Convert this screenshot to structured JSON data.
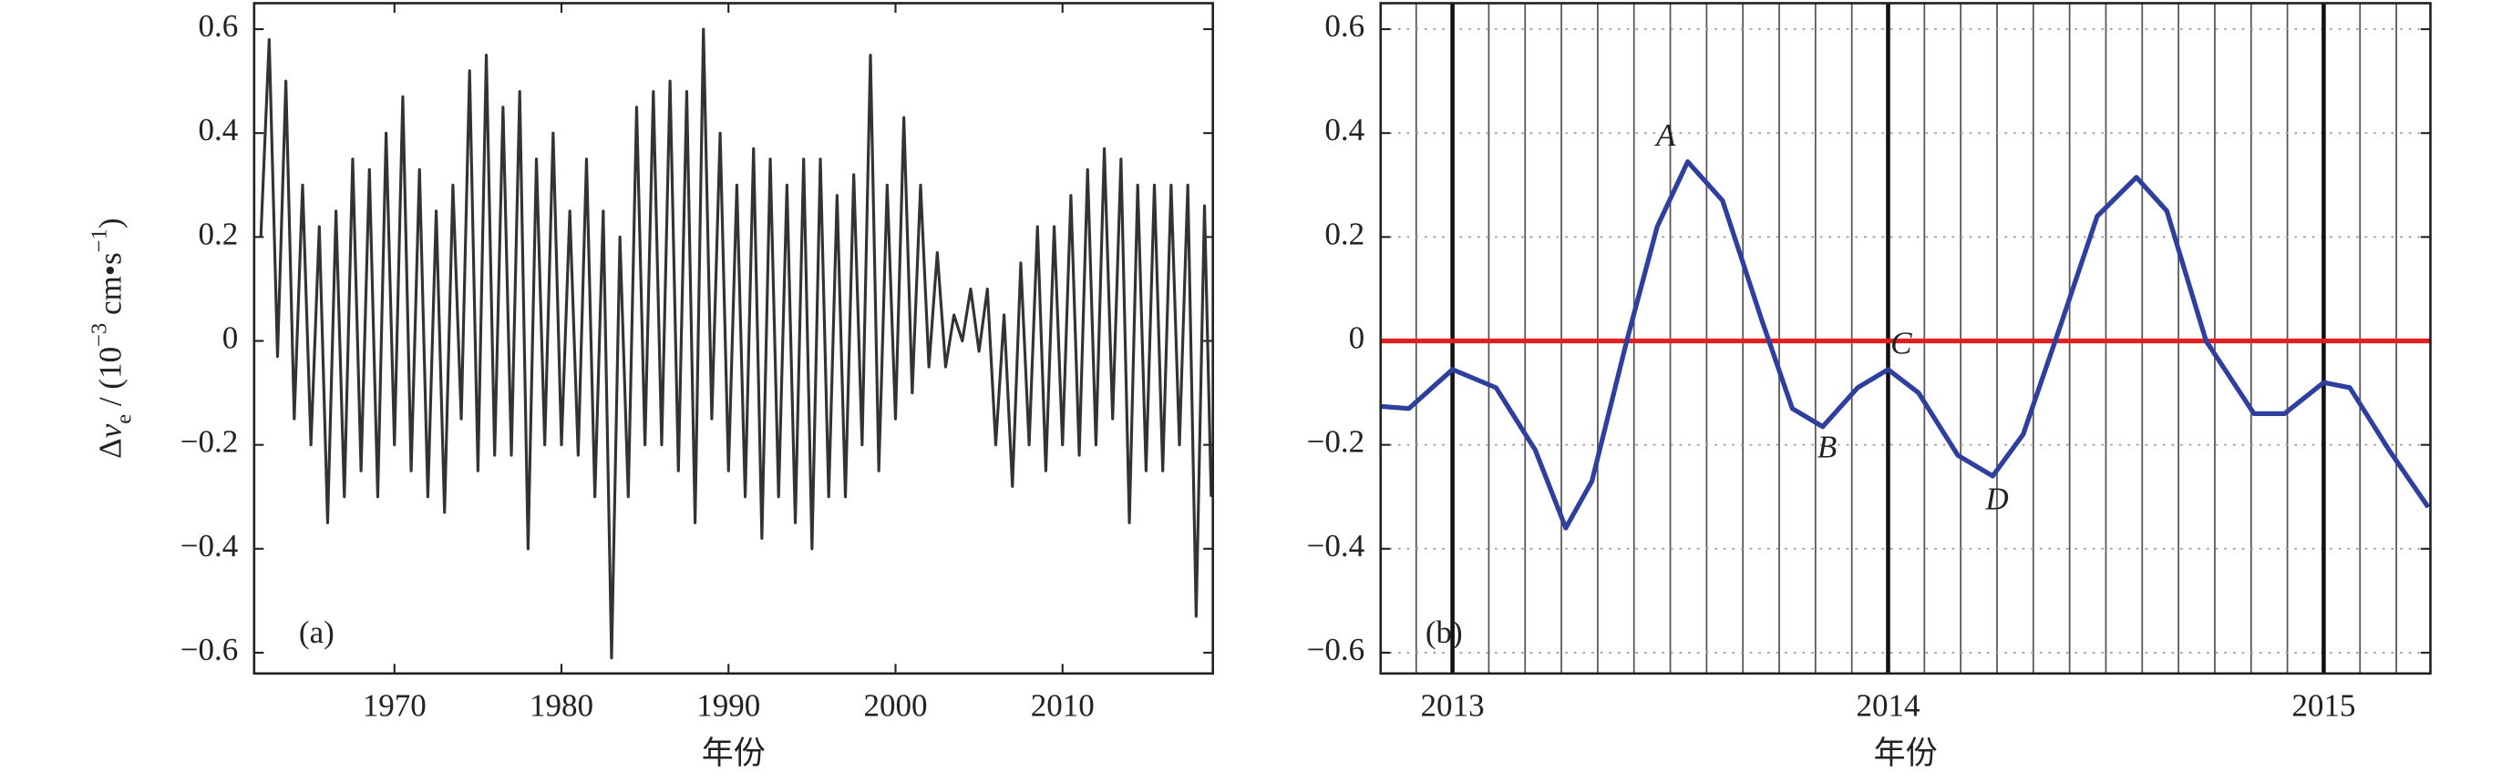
{
  "chart_data": [
    {
      "type": "line",
      "panel_label": "(a)",
      "xlabel": "年份",
      "ylabel_parts": [
        {
          "text": "Δ"
        },
        {
          "text": "v",
          "style": "italic"
        },
        {
          "text": "e",
          "shift": "sub"
        },
        {
          "text": " / (10"
        },
        {
          "text": "−3",
          "shift": "super"
        },
        {
          "text": " cm•s"
        },
        {
          "text": "−1",
          "shift": "super"
        },
        {
          "text": ")"
        }
      ],
      "xlim": [
        1961.6,
        2019.0
      ],
      "xticks": [
        1970,
        1980,
        1990,
        2000,
        2010
      ],
      "ylim": [
        -0.64,
        0.65
      ],
      "yticks": [
        0.6,
        0.4,
        0.2,
        0,
        {
          "value": -0.2,
          "label": "−0.2"
        },
        {
          "value": -0.4,
          "label": "−0.4"
        },
        {
          "value": -0.6,
          "label": "−0.6"
        }
      ],
      "grid": false,
      "series": [
        {
          "color": "#333333",
          "x": [
            1962.0,
            1962.5,
            1963.0,
            1963.5,
            1964.0,
            1964.5,
            1965.0,
            1965.5,
            1966.0,
            1966.5,
            1967.0,
            1967.5,
            1968.0,
            1968.5,
            1969.0,
            1969.5,
            1970.0,
            1970.5,
            1971.0,
            1971.5,
            1972.0,
            1972.5,
            1973.0,
            1973.5,
            1974.0,
            1974.5,
            1975.0,
            1975.5,
            1976.0,
            1976.5,
            1977.0,
            1977.5,
            1978.0,
            1978.5,
            1979.0,
            1979.5,
            1980.0,
            1980.5,
            1981.0,
            1981.5,
            1982.0,
            1982.5,
            1983.0,
            1983.5,
            1984.0,
            1984.5,
            1985.0,
            1985.5,
            1986.0,
            1986.5,
            1987.0,
            1987.5,
            1988.0,
            1988.5,
            1989.0,
            1989.5,
            1990.0,
            1990.5,
            1991.0,
            1991.5,
            1992.0,
            1992.5,
            1993.0,
            1993.5,
            1994.0,
            1994.5,
            1995.0,
            1995.5,
            1996.0,
            1996.5,
            1997.0,
            1997.5,
            1998.0,
            1998.5,
            1999.0,
            1999.5,
            2000.0,
            2000.5,
            2001.0,
            2001.5,
            2002.0,
            2002.5,
            2003.0,
            2003.5,
            2004.0,
            2004.5,
            2005.0,
            2005.5,
            2006.0,
            2006.5,
            2007.0,
            2007.5,
            2008.0,
            2008.5,
            2009.0,
            2009.5,
            2010.0,
            2010.5,
            2011.0,
            2011.5,
            2012.0,
            2012.5,
            2013.0,
            2013.5,
            2014.0,
            2014.5,
            2015.0,
            2015.5,
            2016.0,
            2016.5,
            2017.0,
            2017.5,
            2018.0,
            2018.5,
            2018.9
          ],
          "values": [
            0.2,
            0.58,
            -0.03,
            0.5,
            -0.15,
            0.3,
            -0.2,
            0.22,
            -0.35,
            0.25,
            -0.3,
            0.35,
            -0.25,
            0.33,
            -0.3,
            0.4,
            -0.2,
            0.47,
            -0.25,
            0.33,
            -0.3,
            0.25,
            -0.33,
            0.3,
            -0.15,
            0.52,
            -0.25,
            0.55,
            -0.22,
            0.45,
            -0.22,
            0.48,
            -0.4,
            0.35,
            -0.2,
            0.4,
            -0.2,
            0.25,
            -0.22,
            0.35,
            -0.3,
            0.25,
            -0.61,
            0.2,
            -0.3,
            0.45,
            -0.2,
            0.48,
            -0.2,
            0.5,
            -0.25,
            0.48,
            -0.35,
            0.6,
            -0.15,
            0.4,
            -0.25,
            0.3,
            -0.3,
            0.37,
            -0.38,
            0.35,
            -0.3,
            0.3,
            -0.35,
            0.35,
            -0.4,
            0.35,
            -0.3,
            0.28,
            -0.3,
            0.32,
            -0.2,
            0.55,
            -0.25,
            0.3,
            -0.15,
            0.43,
            -0.1,
            0.3,
            -0.05,
            0.17,
            -0.05,
            0.05,
            0.0,
            0.1,
            -0.02,
            0.1,
            -0.2,
            0.05,
            -0.28,
            0.15,
            -0.2,
            0.22,
            -0.25,
            0.22,
            -0.2,
            0.28,
            -0.22,
            0.33,
            -0.2,
            0.37,
            -0.15,
            0.35,
            -0.35,
            0.3,
            -0.25,
            0.3,
            -0.25,
            0.3,
            -0.2,
            0.3,
            -0.53,
            0.26,
            -0.3
          ]
        }
      ]
    },
    {
      "type": "line",
      "panel_label": "(b)",
      "xlabel": "年份",
      "xlim": [
        2012.835,
        2015.245
      ],
      "xticks": [
        2013,
        2014,
        2015
      ],
      "minor_xticks_per_year": 12,
      "ylim": [
        -0.64,
        0.65
      ],
      "yticks": [
        0.6,
        0.4,
        0.2,
        0,
        {
          "value": -0.2,
          "label": "−0.2"
        },
        {
          "value": -0.4,
          "label": "−0.4"
        },
        {
          "value": -0.6,
          "label": "−0.6"
        }
      ],
      "grid": true,
      "hline": {
        "value": 0,
        "color": "#e02020"
      },
      "series": [
        {
          "color": "#2e3f9e",
          "x": [
            2012.835,
            2012.9,
            2013.0,
            2013.1,
            2013.19,
            2013.26,
            2013.32,
            2013.4,
            2013.47,
            2013.54,
            2013.62,
            2013.71,
            2013.78,
            2013.85,
            2013.93,
            2014.0,
            2014.07,
            2014.16,
            2014.24,
            2014.31,
            2014.4,
            2014.48,
            2014.57,
            2014.64,
            2014.73,
            2014.84,
            2014.91,
            2015.0,
            2015.06,
            2015.15,
            2015.24
          ],
          "values": [
            -0.126,
            -0.13,
            -0.055,
            -0.09,
            -0.21,
            -0.36,
            -0.27,
            0.0,
            0.22,
            0.345,
            0.27,
            0.04,
            -0.13,
            -0.165,
            -0.09,
            -0.055,
            -0.1,
            -0.22,
            -0.26,
            -0.18,
            0.04,
            0.24,
            0.315,
            0.25,
            0.0,
            -0.14,
            -0.14,
            -0.08,
            -0.09,
            -0.21,
            -0.32
          ]
        }
      ],
      "annotations": [
        {
          "text": "A",
          "x": 2013.49,
          "y": 0.39
        },
        {
          "text": "B",
          "x": 2013.86,
          "y": -0.21
        },
        {
          "text": "C",
          "x": 2014.03,
          "y": -0.01
        },
        {
          "text": "D",
          "x": 2014.25,
          "y": -0.31
        }
      ]
    }
  ]
}
